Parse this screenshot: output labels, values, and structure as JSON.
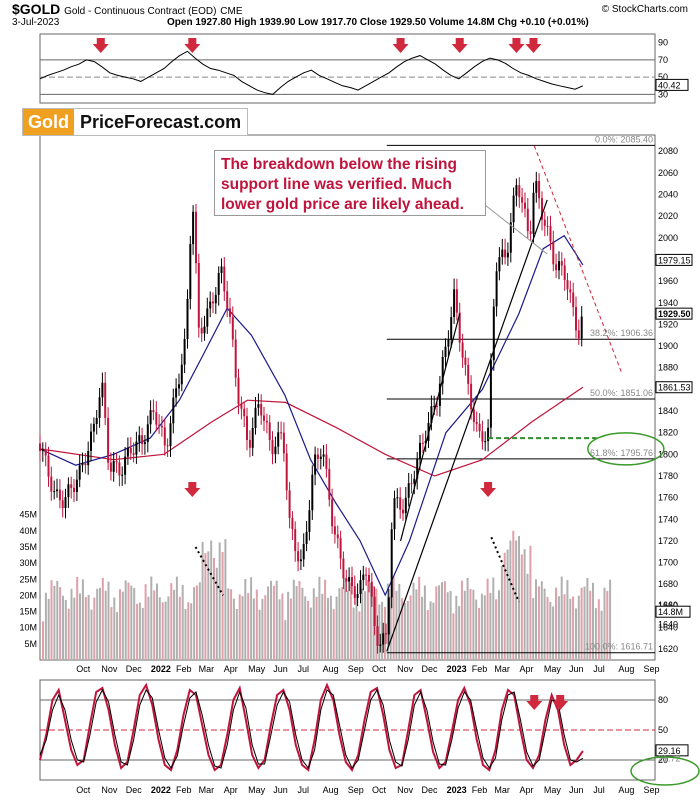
{
  "header": {
    "symbol": "$GOLD",
    "contract": "Gold - Continuous Contract (EOD)",
    "exchange": "CME",
    "date": "3-Jul-2023",
    "source": "© StockCharts.com",
    "ohlc": "Open 1927.80 High 1939.90 Low 1917.70 Close 1929.50 Volume 14.8M Chg +0.10 (+0.01%)"
  },
  "logo": {
    "gold": "Gold",
    "rest": "PriceForecast.com"
  },
  "annotation": "The breakdown below the rising support line was verified. Much lower gold price are likely ahead.",
  "colors": {
    "price": "#000000",
    "down_candle": "#c0143c",
    "ma_short": "#1a1a8c",
    "ma_long": "#c0143c",
    "volume_up": "#b0b0b0",
    "volume_down": "#e0a0a8",
    "arrow": "#d0283c",
    "support": "#2e8b2e",
    "ellipse": "#3a9a2a",
    "fib": "#000000",
    "stoch": "#000000",
    "stoch_signal": "#c0143c"
  },
  "chart_data": [
    {
      "type": "line",
      "panel": "RSI",
      "ylim": [
        20,
        100
      ],
      "yticks": [
        90,
        70,
        50,
        30
      ],
      "levels": [
        70,
        50,
        30
      ],
      "last_value_label": "40.42",
      "series": [
        {
          "values": [
            48,
            52,
            55,
            58,
            62,
            65,
            70,
            68,
            62,
            55,
            52,
            50,
            48,
            45,
            50,
            55,
            60,
            68,
            75,
            80,
            72,
            65,
            60,
            58,
            55,
            52,
            45,
            40,
            35,
            32,
            30,
            38,
            45,
            50,
            55,
            58,
            52,
            48,
            44,
            40,
            38,
            35,
            40,
            45,
            50,
            55,
            62,
            68,
            72,
            75,
            70,
            65,
            58,
            52,
            48,
            55,
            62,
            68,
            72,
            70,
            66,
            60,
            55,
            52,
            48,
            45,
            42,
            40,
            38,
            36,
            40
          ]
        }
      ],
      "x_start": "2021-09-01",
      "x_end": "2023-07-03",
      "arrows_x": [
        "2021-11-15",
        "2022-03-08",
        "2022-11-20",
        "2023-02-01",
        "2023-04-12",
        "2023-05-03"
      ]
    },
    {
      "type": "candlestick",
      "panel": "Price",
      "ylim": [
        1610,
        2095
      ],
      "yticks": [
        2080,
        2060,
        2040,
        2020,
        2000,
        1980,
        1960,
        1940,
        1920,
        1900,
        1880,
        1860,
        1840,
        1820,
        1800,
        1780,
        1760,
        1740,
        1720,
        1700,
        1680,
        1660,
        1640,
        1620
      ],
      "x_labels": [
        "Oct",
        "Nov",
        "Dec",
        "2022",
        "Feb",
        "Mar",
        "Apr",
        "May",
        "Jun",
        "Jul",
        "Aug",
        "Sep",
        "Oct",
        "Nov",
        "Dec",
        "2023",
        "Feb",
        "Mar",
        "Apr",
        "May",
        "Jun",
        "Jul",
        "Aug",
        "Sep"
      ],
      "x_label_dates": [
        "2021-10-01",
        "2021-11-01",
        "2021-12-01",
        "2022-01-01",
        "2022-02-01",
        "2022-03-01",
        "2022-04-01",
        "2022-05-01",
        "2022-06-01",
        "2022-07-01",
        "2022-08-01",
        "2022-09-01",
        "2022-10-01",
        "2022-11-01",
        "2022-12-01",
        "2023-01-01",
        "2023-02-01",
        "2023-03-01",
        "2023-04-01",
        "2023-05-01",
        "2023-06-01",
        "2023-07-01",
        "2023-08-01",
        "2023-09-01"
      ],
      "x_start": "2021-09-01",
      "x_end": "2023-09-30",
      "close": [
        [
          "2021-09-01",
          1810
        ],
        [
          "2021-09-20",
          1760
        ],
        [
          "2021-10-01",
          1758
        ],
        [
          "2021-10-20",
          1782
        ],
        [
          "2021-11-05",
          1818
        ],
        [
          "2021-11-16",
          1868
        ],
        [
          "2021-11-25",
          1790
        ],
        [
          "2021-12-10",
          1785
        ],
        [
          "2021-12-22",
          1805
        ],
        [
          "2022-01-05",
          1812
        ],
        [
          "2022-01-20",
          1842
        ],
        [
          "2022-02-03",
          1805
        ],
        [
          "2022-02-15",
          1855
        ],
        [
          "2022-02-28",
          1905
        ],
        [
          "2022-03-08",
          2045
        ],
        [
          "2022-03-16",
          1912
        ],
        [
          "2022-03-30",
          1935
        ],
        [
          "2022-04-12",
          1970
        ],
        [
          "2022-04-22",
          1935
        ],
        [
          "2022-05-02",
          1862
        ],
        [
          "2022-05-16",
          1808
        ],
        [
          "2022-05-30",
          1850
        ],
        [
          "2022-06-13",
          1806
        ],
        [
          "2022-06-28",
          1818
        ],
        [
          "2022-07-06",
          1735
        ],
        [
          "2022-07-21",
          1695
        ],
        [
          "2022-08-05",
          1790
        ],
        [
          "2022-08-15",
          1808
        ],
        [
          "2022-08-30",
          1728
        ],
        [
          "2022-09-15",
          1680
        ],
        [
          "2022-09-30",
          1672
        ],
        [
          "2022-10-10",
          1700
        ],
        [
          "2022-10-20",
          1630
        ],
        [
          "2022-11-03",
          1628
        ],
        [
          "2022-11-10",
          1755
        ],
        [
          "2022-11-25",
          1752
        ],
        [
          "2022-12-05",
          1780
        ],
        [
          "2022-12-20",
          1818
        ],
        [
          "2023-01-05",
          1855
        ],
        [
          "2023-01-25",
          1945
        ],
        [
          "2023-02-10",
          1866
        ],
        [
          "2023-02-24",
          1815
        ],
        [
          "2023-03-08",
          1820
        ],
        [
          "2023-03-17",
          1975
        ],
        [
          "2023-03-31",
          1986
        ],
        [
          "2023-04-13",
          2055
        ],
        [
          "2023-04-28",
          1998
        ],
        [
          "2023-05-04",
          2052
        ],
        [
          "2023-05-15",
          2020
        ],
        [
          "2023-05-30",
          1975
        ],
        [
          "2023-06-12",
          1966
        ],
        [
          "2023-06-23",
          1922
        ],
        [
          "2023-06-29",
          1912
        ],
        [
          "2023-07-03",
          1929.5
        ]
      ],
      "ma_50": [
        [
          "2021-09-01",
          1805
        ],
        [
          "2021-10-15",
          1790
        ],
        [
          "2021-12-01",
          1800
        ],
        [
          "2022-01-15",
          1815
        ],
        [
          "2022-02-20",
          1850
        ],
        [
          "2022-03-20",
          1890
        ],
        [
          "2022-04-20",
          1935
        ],
        [
          "2022-05-20",
          1910
        ],
        [
          "2022-06-30",
          1855
        ],
        [
          "2022-08-01",
          1795
        ],
        [
          "2022-09-01",
          1755
        ],
        [
          "2022-10-01",
          1720
        ],
        [
          "2022-11-01",
          1670
        ],
        [
          "2022-12-01",
          1720
        ],
        [
          "2023-01-15",
          1820
        ],
        [
          "2023-03-01",
          1860
        ],
        [
          "2023-04-15",
          1930
        ],
        [
          "2023-05-15",
          1990
        ],
        [
          "2023-06-10",
          2002
        ],
        [
          "2023-07-03",
          1975
        ]
      ],
      "ma_200": [
        [
          "2021-09-01",
          1805
        ],
        [
          "2021-12-01",
          1795
        ],
        [
          "2022-02-01",
          1800
        ],
        [
          "2022-04-01",
          1830
        ],
        [
          "2022-05-15",
          1850
        ],
        [
          "2022-07-01",
          1848
        ],
        [
          "2022-09-01",
          1825
        ],
        [
          "2022-11-01",
          1800
        ],
        [
          "2023-01-01",
          1780
        ],
        [
          "2023-03-01",
          1795
        ],
        [
          "2023-05-01",
          1830
        ],
        [
          "2023-07-03",
          1862
        ]
      ],
      "price_labels": [
        "1979.15",
        "1929.50",
        "1861.53"
      ],
      "fib_levels": [
        {
          "label": "0.0%: 2085.40",
          "value": 2085.4
        },
        {
          "label": "38.2%: 1906.36",
          "value": 1906.36
        },
        {
          "label": "50.0%: 1851.06",
          "value": 1851.06
        },
        {
          "label": "61.8%: 1795.76",
          "value": 1795.76
        },
        {
          "label": "100.0%: 1616.71",
          "value": 1616.71
        }
      ],
      "support_level": 1815,
      "arrows_x": [
        "2022-03-08",
        "2023-03-08"
      ]
    },
    {
      "type": "bar",
      "panel": "Volume",
      "ylim": [
        0,
        48
      ],
      "yticks_labels": [
        "45M",
        "40M",
        "35M",
        "30M",
        "25M",
        "20M",
        "15M",
        "10M",
        "5M"
      ],
      "yticks": [
        45,
        40,
        35,
        30,
        25,
        20,
        15,
        10,
        5
      ],
      "right_labels": [
        "1660",
        "1640"
      ],
      "last_value_label": "14.8M",
      "note": ""
    },
    {
      "type": "line",
      "panel": "Stochastic",
      "ylim": [
        0,
        100
      ],
      "yticks": [
        80,
        50,
        20
      ],
      "levels": [
        80,
        50,
        20
      ],
      "last_value_labels": [
        "29.16",
        "21.72"
      ],
      "x_labels": [
        "Oct",
        "Nov",
        "Dec",
        "2022",
        "Feb",
        "Mar",
        "Apr",
        "May",
        "Jun",
        "Jul",
        "Aug",
        "Sep",
        "Oct",
        "Nov",
        "Dec",
        "2023",
        "Feb",
        "Mar",
        "Apr",
        "May",
        "Jun",
        "Jul",
        "Aug",
        "Sep"
      ],
      "series": [
        {
          "values": [
            20,
            45,
            80,
            90,
            60,
            30,
            15,
            20,
            55,
            88,
            92,
            70,
            35,
            12,
            18,
            50,
            85,
            95,
            75,
            40,
            15,
            10,
            30,
            65,
            90,
            85,
            55,
            25,
            10,
            15,
            45,
            80,
            92,
            60,
            25,
            12,
            20,
            55,
            85,
            90,
            70,
            35,
            15,
            10,
            40,
            80,
            95,
            80,
            45,
            18,
            10,
            25,
            60,
            88,
            92,
            65,
            30,
            12,
            15,
            50,
            85,
            90,
            60,
            28,
            12,
            18,
            48,
            80,
            92,
            75,
            40,
            15,
            10,
            30,
            70,
            90,
            85,
            50,
            20,
            12,
            25,
            60,
            85,
            70,
            35,
            15,
            20,
            29
          ]
        },
        {
          "values": [
            25,
            40,
            70,
            85,
            70,
            40,
            20,
            18,
            45,
            78,
            90,
            78,
            45,
            18,
            15,
            40,
            75,
            90,
            82,
            50,
            22,
            12,
            24,
            55,
            82,
            88,
            65,
            35,
            14,
            12,
            35,
            70,
            88,
            72,
            35,
            16,
            16,
            45,
            75,
            88,
            78,
            45,
            20,
            12,
            30,
            70,
            90,
            85,
            55,
            25,
            12,
            20,
            50,
            80,
            90,
            75,
            40,
            18,
            14,
            40,
            75,
            88,
            70,
            38,
            16,
            15,
            40,
            72,
            88,
            80,
            50,
            22,
            12,
            22,
            60,
            85,
            88,
            60,
            28,
            14,
            20,
            50,
            80,
            78,
            45,
            20,
            18,
            21.72
          ]
        }
      ],
      "arrows_x": [
        "2023-05-04",
        "2023-06-05"
      ]
    }
  ]
}
